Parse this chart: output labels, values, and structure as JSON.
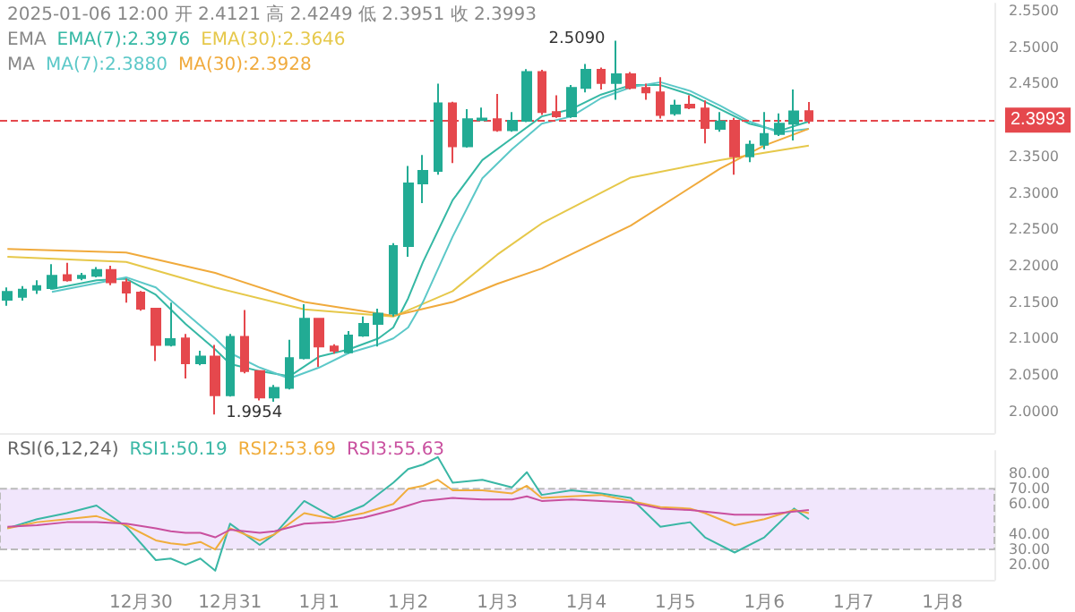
{
  "chart_data": [
    {
      "type": "candlestick",
      "annotations": [
        "2025-01-06 12:00 开 2.4121 高 2.4249 低 2.3951 收 2.3993",
        "EMA",
        "MA",
        {
          "text": "2.5090",
          "x": "2025-01-04T08:00",
          "y": 2.509
        },
        {
          "text": "1.9954",
          "x": "2024-12-30T20:00",
          "y": 1.9954
        }
      ],
      "x": [
        "2024-12-28T12:00",
        "2024-12-28T16:00",
        "2024-12-28T20:00",
        "2024-12-29T00:00",
        "2024-12-29T04:00",
        "2024-12-29T08:00",
        "2024-12-29T12:00",
        "2024-12-29T16:00",
        "2024-12-29T20:00",
        "2024-12-30T00:00",
        "2024-12-30T04:00",
        "2024-12-30T08:00",
        "2024-12-30T12:00",
        "2024-12-30T16:00",
        "2024-12-30T20:00",
        "2024-12-31T00:00",
        "2024-12-31T04:00",
        "2024-12-31T08:00",
        "2024-12-31T12:00",
        "2024-12-31T16:00",
        "2024-12-31T20:00",
        "2025-01-01T00:00",
        "2025-01-01T04:00",
        "2025-01-01T08:00",
        "2025-01-01T12:00",
        "2025-01-01T16:00",
        "2025-01-01T20:00",
        "2025-01-02T00:00",
        "2025-01-02T04:00",
        "2025-01-02T08:00",
        "2025-01-02T12:00",
        "2025-01-02T16:00",
        "2025-01-02T20:00",
        "2025-01-03T00:00",
        "2025-01-03T04:00",
        "2025-01-03T08:00",
        "2025-01-03T12:00",
        "2025-01-03T16:00",
        "2025-01-03T20:00",
        "2025-01-04T00:00",
        "2025-01-04T04:00",
        "2025-01-04T08:00",
        "2025-01-04T12:00",
        "2025-01-04T16:00",
        "2025-01-04T20:00",
        "2025-01-05T00:00",
        "2025-01-05T04:00",
        "2025-01-05T08:00",
        "2025-01-05T12:00",
        "2025-01-05T16:00",
        "2025-01-05T20:00",
        "2025-01-06T00:00",
        "2025-01-06T04:00",
        "2025-01-06T08:00",
        "2025-01-06T12:00"
      ],
      "ohlc": [
        [
          2.153,
          2.17,
          2.145,
          2.164
        ],
        [
          2.157,
          2.172,
          2.152,
          2.167
        ],
        [
          2.167,
          2.18,
          2.161,
          2.172
        ],
        [
          2.169,
          2.202,
          2.167,
          2.186
        ],
        [
          2.187,
          2.204,
          2.178,
          2.18
        ],
        [
          2.183,
          2.19,
          2.18,
          2.186
        ],
        [
          2.186,
          2.198,
          2.184,
          2.194
        ],
        [
          2.194,
          2.2,
          2.173,
          2.177
        ],
        [
          2.177,
          2.182,
          2.149,
          2.163
        ],
        [
          2.163,
          2.165,
          2.138,
          2.141
        ],
        [
          2.141,
          2.141,
          2.069,
          2.091
        ],
        [
          2.091,
          2.149,
          2.089,
          2.099
        ],
        [
          2.1,
          2.106,
          2.045,
          2.066
        ],
        [
          2.066,
          2.083,
          2.063,
          2.075
        ],
        [
          2.075,
          2.091,
          1.9954,
          2.022
        ],
        [
          2.022,
          2.106,
          2.02,
          2.102
        ],
        [
          2.102,
          2.139,
          2.052,
          2.055
        ],
        [
          2.055,
          2.055,
          2.015,
          2.019
        ],
        [
          2.019,
          2.036,
          2.013,
          2.032
        ],
        [
          2.032,
          2.098,
          2.03,
          2.073
        ],
        [
          2.073,
          2.147,
          2.071,
          2.127
        ],
        [
          2.127,
          2.127,
          2.061,
          2.089
        ],
        [
          2.089,
          2.092,
          2.079,
          2.083
        ],
        [
          2.081,
          2.11,
          2.079,
          2.104
        ],
        [
          2.104,
          2.13,
          2.102,
          2.12
        ],
        [
          2.12,
          2.141,
          2.089,
          2.134
        ],
        [
          2.134,
          2.231,
          2.13,
          2.227
        ],
        [
          2.227,
          2.337,
          2.212,
          2.313
        ],
        [
          2.313,
          2.352,
          2.286,
          2.33
        ],
        [
          2.33,
          2.45,
          2.325,
          2.423
        ],
        [
          2.423,
          2.425,
          2.341,
          2.364
        ],
        [
          2.364,
          2.415,
          2.362,
          2.401
        ],
        [
          2.4,
          2.417,
          2.399,
          2.402
        ],
        [
          2.401,
          2.436,
          2.384,
          2.386
        ],
        [
          2.386,
          2.411,
          2.384,
          2.399
        ],
        [
          2.399,
          2.47,
          2.397,
          2.466
        ],
        [
          2.466,
          2.469,
          2.407,
          2.411
        ],
        [
          2.411,
          2.434,
          2.403,
          2.405
        ],
        [
          2.405,
          2.448,
          2.403,
          2.444
        ],
        [
          2.444,
          2.477,
          2.438,
          2.469
        ],
        [
          2.469,
          2.472,
          2.442,
          2.451
        ],
        [
          2.451,
          2.509,
          2.428,
          2.463
        ],
        [
          2.463,
          2.466,
          2.442,
          2.444
        ],
        [
          2.444,
          2.45,
          2.428,
          2.438
        ],
        [
          2.438,
          2.459,
          2.402,
          2.407
        ],
        [
          2.409,
          2.428,
          2.406,
          2.42
        ],
        [
          2.421,
          2.434,
          2.415,
          2.417
        ],
        [
          2.416,
          2.427,
          2.368,
          2.389
        ],
        [
          2.388,
          2.411,
          2.384,
          2.398
        ],
        [
          2.399,
          2.403,
          2.325,
          2.35
        ],
        [
          2.35,
          2.372,
          2.342,
          2.366
        ],
        [
          2.366,
          2.411,
          2.36,
          2.381
        ],
        [
          2.381,
          2.409,
          2.378,
          2.395
        ],
        [
          2.395,
          2.442,
          2.372,
          2.412
        ],
        [
          2.4121,
          2.4249,
          2.3951,
          2.3993
        ]
      ],
      "series": [
        {
          "type": "line",
          "name": "EMA(7):2.3976",
          "color": "#35b8a4",
          "x": [
            "2024-12-29T00:00",
            "2024-12-29T12:00",
            "2024-12-29T20:00",
            "2024-12-30T04:00",
            "2024-12-30T12:00",
            "2024-12-30T20:00",
            "2024-12-31T00:00",
            "2024-12-31T08:00",
            "2024-12-31T16:00",
            "2025-01-01T00:00",
            "2025-01-01T08:00",
            "2025-01-01T16:00",
            "2025-01-01T20:00",
            "2025-01-02T00:00",
            "2025-01-02T04:00",
            "2025-01-02T12:00",
            "2025-01-02T20:00",
            "2025-01-03T04:00",
            "2025-01-03T12:00",
            "2025-01-03T20:00",
            "2025-01-04T04:00",
            "2025-01-04T12:00",
            "2025-01-04T20:00",
            "2025-01-05T04:00",
            "2025-01-05T12:00",
            "2025-01-05T20:00",
            "2025-01-06T04:00",
            "2025-01-06T12:00"
          ],
          "values": [
            2.168,
            2.18,
            2.182,
            2.16,
            2.12,
            2.085,
            2.065,
            2.055,
            2.048,
            2.075,
            2.085,
            2.1,
            2.115,
            2.155,
            2.205,
            2.29,
            2.345,
            2.375,
            2.405,
            2.415,
            2.435,
            2.448,
            2.448,
            2.435,
            2.415,
            2.395,
            2.385,
            2.398
          ]
        },
        {
          "type": "line",
          "name": "EMA(30):2.3646",
          "color": "#e6c84a",
          "x": [
            "2024-12-28T12:00",
            "2024-12-29T20:00",
            "2024-12-30T20:00",
            "2024-12-31T20:00",
            "2025-01-01T20:00",
            "2025-01-02T12:00",
            "2025-01-03T00:00",
            "2025-01-03T12:00",
            "2025-01-04T12:00",
            "2025-01-05T12:00",
            "2025-01-06T00:00",
            "2025-01-06T12:00"
          ],
          "values": [
            2.212,
            2.205,
            2.17,
            2.14,
            2.13,
            2.165,
            2.215,
            2.258,
            2.321,
            2.345,
            2.355,
            2.365
          ]
        },
        {
          "type": "line",
          "name": "MA(7):2.3880",
          "color": "#5cc8c8",
          "x": [
            "2024-12-29T00:00",
            "2024-12-29T12:00",
            "2024-12-29T20:00",
            "2024-12-30T04:00",
            "2024-12-30T12:00",
            "2024-12-30T20:00",
            "2024-12-31T00:00",
            "2024-12-31T08:00",
            "2024-12-31T16:00",
            "2025-01-01T00:00",
            "2025-01-01T08:00",
            "2025-01-01T16:00",
            "2025-01-01T20:00",
            "2025-01-02T00:00",
            "2025-01-02T04:00",
            "2025-01-02T12:00",
            "2025-01-02T20:00",
            "2025-01-03T04:00",
            "2025-01-03T12:00",
            "2025-01-03T20:00",
            "2025-01-04T04:00",
            "2025-01-04T12:00",
            "2025-01-04T20:00",
            "2025-01-05T04:00",
            "2025-01-05T12:00",
            "2025-01-05T20:00",
            "2025-01-06T04:00",
            "2025-01-06T12:00"
          ],
          "values": [
            2.164,
            2.176,
            2.184,
            2.17,
            2.135,
            2.1,
            2.08,
            2.06,
            2.045,
            2.06,
            2.08,
            2.092,
            2.1,
            2.115,
            2.15,
            2.24,
            2.32,
            2.36,
            2.395,
            2.405,
            2.43,
            2.445,
            2.452,
            2.44,
            2.42,
            2.398,
            2.383,
            2.388
          ]
        },
        {
          "type": "line",
          "name": "MA(30):2.3928",
          "color": "#f0aa3c",
          "x": [
            "2024-12-28T12:00",
            "2024-12-29T20:00",
            "2024-12-30T20:00",
            "2024-12-31T20:00",
            "2025-01-01T20:00",
            "2025-01-02T12:00",
            "2025-01-03T00:00",
            "2025-01-03T12:00",
            "2025-01-04T12:00",
            "2025-01-05T12:00",
            "2025-01-06T00:00",
            "2025-01-06T12:00"
          ],
          "values": [
            2.223,
            2.218,
            2.19,
            2.15,
            2.131,
            2.15,
            2.175,
            2.196,
            2.255,
            2.333,
            2.365,
            2.388
          ]
        }
      ],
      "xlim": [
        "2024-12-28T10:00",
        "2025-01-08T14:00"
      ],
      "ylim": [
        1.97,
        2.56
      ],
      "yticks": [
        {
          "value": 2.0,
          "label": "2.0000"
        },
        {
          "value": 2.05,
          "label": "2.0500"
        },
        {
          "value": 2.1,
          "label": "2.1000"
        },
        {
          "value": 2.15,
          "label": "2.1500"
        },
        {
          "value": 2.2,
          "label": "2.2000"
        },
        {
          "value": 2.25,
          "label": "2.2500"
        },
        {
          "value": 2.3,
          "label": "2.3000"
        },
        {
          "value": 2.35,
          "label": "2.3500"
        },
        {
          "value": 2.45,
          "label": "2.4500"
        },
        {
          "value": 2.5,
          "label": "2.5000"
        },
        {
          "value": 2.55,
          "label": "2.5500"
        }
      ],
      "tick_labels": "y",
      "ref_lines": [
        {
          "axis": "y",
          "value": 2.3993,
          "label": "2.3993",
          "color": "#e5484d",
          "line_style": "dashed"
        }
      ]
    },
    {
      "type": "line",
      "title": "RSI(6,12,24)",
      "x": [
        "2024-12-28T12:00",
        "2024-12-28T20:00",
        "2024-12-29T04:00",
        "2024-12-29T12:00",
        "2024-12-29T20:00",
        "2024-12-30T04:00",
        "2024-12-30T08:00",
        "2024-12-30T12:00",
        "2024-12-30T16:00",
        "2024-12-30T20:00",
        "2024-12-31T00:00",
        "2024-12-31T08:00",
        "2024-12-31T12:00",
        "2024-12-31T20:00",
        "2025-01-01T04:00",
        "2025-01-01T12:00",
        "2025-01-01T20:00",
        "2025-01-02T00:00",
        "2025-01-02T04:00",
        "2025-01-02T08:00",
        "2025-01-02T12:00",
        "2025-01-02T20:00",
        "2025-01-03T04:00",
        "2025-01-03T08:00",
        "2025-01-03T12:00",
        "2025-01-03T20:00",
        "2025-01-04T04:00",
        "2025-01-04T12:00",
        "2025-01-04T20:00",
        "2025-01-05T04:00",
        "2025-01-05T08:00",
        "2025-01-05T16:00",
        "2025-01-06T00:00",
        "2025-01-06T08:00",
        "2025-01-06T12:00"
      ],
      "series": [
        {
          "name": "RSI1:50.19",
          "color": "#3ab7a5",
          "values": [
            44,
            50,
            54,
            59,
            45,
            23,
            24,
            20,
            24,
            16,
            47,
            33,
            40,
            62,
            51,
            59,
            74,
            83,
            86,
            91,
            74,
            76,
            71,
            81,
            66,
            69,
            67,
            64,
            45,
            48,
            38,
            28,
            38,
            57,
            50
          ]
        },
        {
          "name": "RSI2:53.69",
          "color": "#f0ad3c",
          "values": [
            44,
            48,
            50,
            52,
            46,
            36,
            34,
            33,
            35,
            30,
            44,
            36,
            40,
            54,
            50,
            54,
            60,
            70,
            72,
            76,
            69,
            69,
            67,
            72,
            64,
            65,
            66,
            62,
            58,
            57,
            54,
            46,
            50,
            56,
            54
          ]
        },
        {
          "name": "RSI3:55.63",
          "color": "#c9509f",
          "values": [
            45,
            46,
            48,
            48,
            47,
            44,
            42,
            41,
            41,
            38,
            43,
            41,
            42,
            47,
            48,
            51,
            56,
            59,
            62,
            63,
            64,
            63,
            63,
            65,
            62,
            63,
            62,
            61,
            57,
            56,
            55,
            53,
            53,
            55,
            56
          ]
        }
      ],
      "xlim": [
        "2024-12-28T10:00",
        "2025-01-08T14:00"
      ],
      "xticks": [
        {
          "value": "2024-12-30",
          "label": "12月30"
        },
        {
          "value": "2024-12-31",
          "label": "12月31"
        },
        {
          "value": "2025-01-01",
          "label": "1月1"
        },
        {
          "value": "2025-01-02",
          "label": "1月2"
        },
        {
          "value": "2025-01-03",
          "label": "1月3"
        },
        {
          "value": "2025-01-04",
          "label": "1月4"
        },
        {
          "value": "2025-01-05",
          "label": "1月5"
        },
        {
          "value": "2025-01-06",
          "label": "1月6"
        },
        {
          "value": "2025-01-07",
          "label": "1月7"
        },
        {
          "value": "2025-01-08",
          "label": "1月8"
        }
      ],
      "ylim": [
        10,
        95
      ],
      "yticks": [
        {
          "value": 20,
          "label": "20.00"
        },
        {
          "value": 30,
          "label": "30.00"
        },
        {
          "value": 40,
          "label": "40.00"
        },
        {
          "value": 60,
          "label": "60.00"
        },
        {
          "value": 70,
          "label": "70.00"
        },
        {
          "value": 80,
          "label": "80.00"
        }
      ],
      "bands": [
        {
          "axis": "y",
          "from": 30,
          "to": 70,
          "color": "#f1e6fc"
        }
      ]
    }
  ]
}
